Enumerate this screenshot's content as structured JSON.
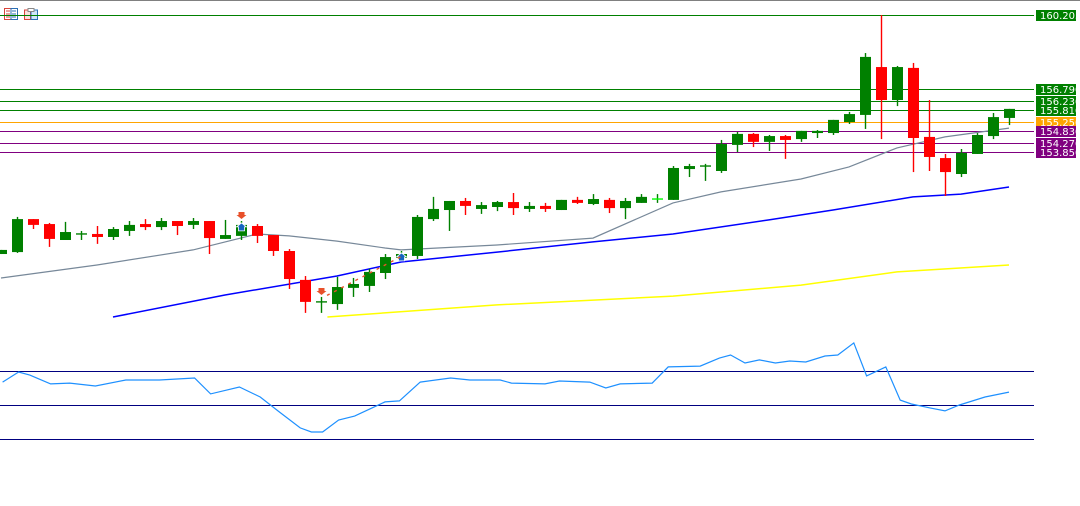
{
  "toolbar": {
    "icons": [
      "indicator-list-icon",
      "save-template-icon"
    ]
  },
  "colors": {
    "bull": "#008000",
    "bear": "#FF0000",
    "ma_fast": "#778899",
    "ma_mid": "#0000FF",
    "ma_slow": "#FFFF00",
    "oscillator": "#1E90FF",
    "osc_levels": "#000080",
    "level_green": "#008000",
    "level_orange": "#FFA500",
    "level_purple": "#800080"
  },
  "chart_data": {
    "type": "candlestick",
    "price_levels": [
      {
        "label": "160.203",
        "value": 160.203,
        "color": "#008000"
      },
      {
        "label": "156.790",
        "value": 156.79,
        "color": "#008000"
      },
      {
        "label": "156.230",
        "value": 156.23,
        "color": "#008000"
      },
      {
        "label": "155.810",
        "value": 155.81,
        "color": "#008000"
      },
      {
        "label": "155.250",
        "value": 155.25,
        "color": "#FFA500"
      },
      {
        "label": "154.830",
        "value": 154.83,
        "color": "#800080"
      },
      {
        "label": "154.270",
        "value": 154.27,
        "color": "#800080"
      },
      {
        "label": "153.850",
        "value": 153.85,
        "color": "#800080"
      }
    ],
    "candles_ohlc": [
      [
        149.12,
        149.31,
        149.12,
        149.31
      ],
      [
        149.21,
        150.84,
        149.17,
        150.74
      ],
      [
        150.74,
        150.74,
        150.28,
        150.47
      ],
      [
        150.51,
        150.56,
        149.45,
        149.82
      ],
      [
        149.77,
        150.61,
        149.77,
        150.14
      ],
      [
        150.05,
        150.19,
        149.77,
        150.05
      ],
      [
        150.05,
        150.42,
        149.59,
        149.91
      ],
      [
        149.91,
        150.37,
        149.77,
        150.28
      ],
      [
        150.19,
        150.65,
        149.96,
        150.47
      ],
      [
        150.51,
        150.74,
        150.23,
        150.37
      ],
      [
        150.37,
        150.79,
        150.23,
        150.65
      ],
      [
        150.65,
        150.65,
        150.0,
        150.42
      ],
      [
        150.47,
        150.79,
        150.28,
        150.65
      ],
      [
        150.65,
        150.65,
        149.12,
        149.86
      ],
      [
        149.82,
        150.7,
        149.82,
        150.0
      ],
      [
        149.96,
        150.65,
        149.77,
        150.47
      ],
      [
        150.42,
        150.51,
        149.63,
        149.96
      ],
      [
        150.0,
        150.0,
        149.03,
        149.26
      ],
      [
        149.26,
        149.35,
        147.5,
        147.96
      ],
      [
        147.92,
        148.1,
        146.39,
        146.9
      ],
      [
        146.9,
        147.13,
        146.39,
        146.9
      ],
      [
        146.8,
        148.06,
        146.53,
        147.59
      ],
      [
        147.55,
        148.01,
        147.13,
        147.73
      ],
      [
        147.64,
        148.43,
        147.36,
        148.29
      ],
      [
        148.24,
        149.12,
        147.96,
        148.98
      ],
      [
        148.94,
        149.26,
        148.94,
        149.12
      ],
      [
        149.03,
        150.93,
        148.89,
        150.84
      ],
      [
        150.74,
        151.77,
        150.65,
        151.21
      ],
      [
        151.16,
        151.58,
        150.19,
        151.58
      ],
      [
        151.58,
        151.72,
        150.93,
        151.35
      ],
      [
        151.21,
        151.53,
        150.98,
        151.39
      ],
      [
        151.3,
        151.58,
        151.11,
        151.53
      ],
      [
        151.53,
        151.95,
        150.93,
        151.25
      ],
      [
        151.21,
        151.53,
        151.07,
        151.35
      ],
      [
        151.35,
        151.49,
        151.07,
        151.21
      ],
      [
        151.16,
        151.63,
        151.16,
        151.63
      ],
      [
        151.63,
        151.77,
        151.44,
        151.49
      ],
      [
        151.44,
        151.9,
        151.39,
        151.67
      ],
      [
        151.63,
        151.72,
        151.02,
        151.25
      ],
      [
        151.25,
        151.72,
        150.74,
        151.58
      ],
      [
        151.49,
        151.9,
        151.49,
        151.77
      ],
      [
        151.67,
        151.9,
        151.49,
        151.67
      ],
      [
        151.63,
        153.2,
        151.63,
        153.11
      ],
      [
        153.06,
        153.3,
        152.69,
        153.2
      ],
      [
        153.2,
        153.3,
        152.51,
        153.2
      ],
      [
        152.97,
        154.41,
        152.88,
        154.22
      ],
      [
        154.18,
        154.78,
        153.85,
        154.69
      ],
      [
        154.69,
        154.73,
        154.08,
        154.32
      ],
      [
        154.32,
        154.64,
        153.9,
        154.59
      ],
      [
        154.59,
        154.64,
        153.53,
        154.41
      ],
      [
        154.45,
        154.83,
        154.32,
        154.83
      ],
      [
        154.73,
        154.87,
        154.5,
        154.83
      ],
      [
        154.73,
        155.34,
        154.64,
        155.34
      ],
      [
        155.24,
        155.71,
        155.15,
        155.61
      ],
      [
        155.57,
        158.44,
        154.92,
        158.26
      ],
      [
        157.79,
        160.2,
        154.45,
        156.26
      ],
      [
        156.26,
        157.84,
        155.98,
        157.79
      ],
      [
        157.75,
        157.98,
        152.92,
        154.5
      ],
      [
        154.55,
        156.26,
        152.97,
        153.62
      ],
      [
        153.57,
        153.76,
        151.81,
        152.92
      ],
      [
        152.83,
        153.99,
        152.69,
        153.81
      ],
      [
        153.76,
        154.73,
        153.76,
        154.64
      ],
      [
        154.59,
        155.66,
        154.45,
        155.47
      ],
      [
        155.43,
        155.85,
        155.1,
        155.85
      ]
    ],
    "moving_averages": [
      {
        "color": "#778899",
        "points": [
          [
            0,
            148.01
          ],
          [
            6,
            148.61
          ],
          [
            12,
            149.31
          ],
          [
            16,
            150.05
          ],
          [
            18,
            149.96
          ],
          [
            21,
            149.72
          ],
          [
            24,
            149.4
          ],
          [
            25,
            149.31
          ],
          [
            31,
            149.54
          ],
          [
            37,
            149.86
          ],
          [
            42,
            151.49
          ],
          [
            45,
            152.0
          ],
          [
            50,
            152.6
          ],
          [
            53,
            153.16
          ],
          [
            56,
            154.04
          ],
          [
            59,
            154.55
          ],
          [
            63,
            154.96
          ]
        ]
      },
      {
        "color": "#0000FF",
        "points": [
          [
            7,
            146.2
          ],
          [
            14,
            147.22
          ],
          [
            21,
            148.1
          ],
          [
            25,
            148.75
          ],
          [
            31,
            149.21
          ],
          [
            37,
            149.68
          ],
          [
            42,
            150.05
          ],
          [
            48,
            150.7
          ],
          [
            52,
            151.16
          ],
          [
            57,
            151.77
          ],
          [
            60,
            151.9
          ],
          [
            63,
            152.23
          ]
        ]
      },
      {
        "color": "#FFFF00",
        "points": [
          [
            20.4,
            146.2
          ],
          [
            31,
            146.76
          ],
          [
            42,
            147.17
          ],
          [
            50,
            147.68
          ],
          [
            56,
            148.29
          ],
          [
            63,
            148.61
          ]
        ]
      }
    ],
    "signals": [
      {
        "type": "sell-arrow",
        "bar": 15
      },
      {
        "type": "buy-arrow",
        "bar": 15
      },
      {
        "type": "sell-arrow",
        "bar": 20
      },
      {
        "type": "buy-arrow",
        "bar": 25
      }
    ],
    "oscillator": {
      "levels": [
        70,
        50,
        30
      ],
      "points": [
        [
          0.1,
          63.5
        ],
        [
          1.1,
          69.4
        ],
        [
          1.8,
          67.6
        ],
        [
          3.1,
          62.4
        ],
        [
          4.3,
          62.9
        ],
        [
          5.9,
          61.2
        ],
        [
          7.8,
          64.7
        ],
        [
          9.9,
          64.7
        ],
        [
          12.1,
          65.9
        ],
        [
          13.1,
          56.5
        ],
        [
          14.9,
          60.6
        ],
        [
          16.2,
          54.7
        ],
        [
          17.4,
          45.9
        ],
        [
          18.7,
          36.5
        ],
        [
          19.4,
          34.1
        ],
        [
          20.1,
          34.1
        ],
        [
          21.1,
          41.2
        ],
        [
          22.1,
          43.5
        ],
        [
          24,
          51.8
        ],
        [
          24.9,
          52.4
        ],
        [
          26.2,
          63.5
        ],
        [
          28.1,
          65.9
        ],
        [
          29.3,
          64.7
        ],
        [
          31.2,
          64.7
        ],
        [
          31.9,
          62.9
        ],
        [
          34,
          62.4
        ],
        [
          34.9,
          64.1
        ],
        [
          36.8,
          63.5
        ],
        [
          37.8,
          60.0
        ],
        [
          38.7,
          62.4
        ],
        [
          40.7,
          62.9
        ],
        [
          41.7,
          72.4
        ],
        [
          43.7,
          72.9
        ],
        [
          44.9,
          77.6
        ],
        [
          45.6,
          79.4
        ],
        [
          46.5,
          74.7
        ],
        [
          47.4,
          76.5
        ],
        [
          48.4,
          74.7
        ],
        [
          49.3,
          75.9
        ],
        [
          50.3,
          75.3
        ],
        [
          51.5,
          78.8
        ],
        [
          52.3,
          79.4
        ],
        [
          53.3,
          86.5
        ],
        [
          54.1,
          67.1
        ],
        [
          55.3,
          72.4
        ],
        [
          56.2,
          52.9
        ],
        [
          56.9,
          50.6
        ],
        [
          58.1,
          48.2
        ],
        [
          59,
          46.5
        ],
        [
          59.9,
          50.0
        ],
        [
          61.5,
          54.7
        ],
        [
          63,
          57.6
        ]
      ]
    }
  }
}
